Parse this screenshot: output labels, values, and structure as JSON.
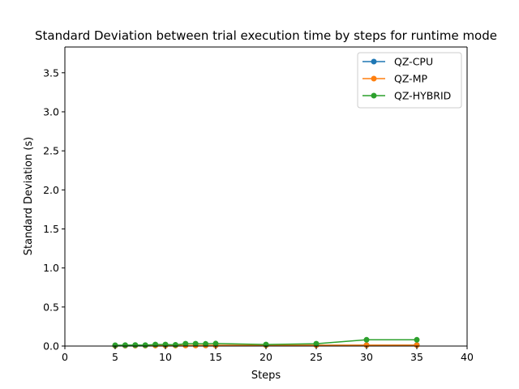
{
  "chart_data": {
    "type": "line",
    "title": "Standard Deviation between trial execution time by steps for runtime mode",
    "xlabel": "Steps",
    "ylabel": "Standard Deviation (s)",
    "xlim": [
      0,
      40
    ],
    "ylim": [
      0,
      3.83
    ],
    "xticks": [
      "0",
      "5",
      "10",
      "15",
      "20",
      "25",
      "30",
      "35",
      "40"
    ],
    "yticks": [
      "0.0",
      "0.5",
      "1.0",
      "1.5",
      "2.0",
      "2.5",
      "3.0",
      "3.5"
    ],
    "grid": false,
    "legend_position": "upper right",
    "x": [
      5,
      6,
      7,
      8,
      9,
      10,
      11,
      12,
      13,
      14,
      15,
      20,
      25,
      30,
      35
    ],
    "series": [
      {
        "name": "QZ-CPU",
        "color": "#1f77b4",
        "values": [
          0.005,
          0.005,
          0.006,
          0.006,
          0.007,
          0.007,
          0.007,
          0.008,
          0.008,
          0.008,
          0.009,
          0.01,
          0.011,
          0.012,
          0.013
        ]
      },
      {
        "name": "QZ-MP",
        "color": "#ff7f0e",
        "values": [
          0.005,
          0.006,
          0.006,
          0.006,
          0.007,
          0.007,
          0.007,
          0.008,
          0.008,
          0.009,
          0.009,
          0.01,
          0.011,
          0.012,
          0.012
        ]
      },
      {
        "name": "QZ-HYBRID",
        "color": "#2ca02c",
        "values": [
          0.01,
          0.012,
          0.013,
          0.012,
          0.02,
          0.02,
          0.016,
          0.03,
          0.03,
          0.028,
          0.032,
          0.02,
          0.03,
          0.08,
          0.08
        ]
      }
    ]
  }
}
